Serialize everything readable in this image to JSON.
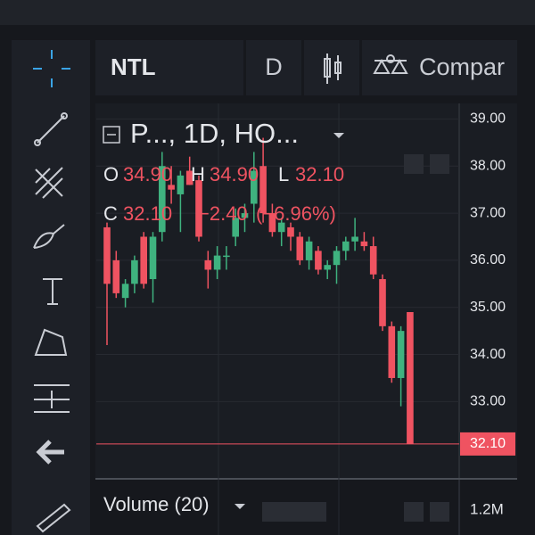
{
  "toolbar": {
    "symbol": "NTL",
    "interval": "D",
    "compare": "Compar"
  },
  "legend": {
    "title": "P..., 1D, HO...",
    "o_label": "O",
    "o_value": "34.90",
    "h_label": "H",
    "h_value": "34.90",
    "l_label": "L",
    "l_value": "32.10",
    "c_label": "C",
    "c_value": "32.10",
    "change": "−2.40",
    "change_pct": "(−6.96%)"
  },
  "volume": {
    "title": "Volume (20)",
    "axis_label": "1.2M"
  },
  "chart_data": {
    "type": "candlestick",
    "ylim": [
      31.36,
      39.33
    ],
    "yticks": [
      {
        "value": 39,
        "label": "39.00"
      },
      {
        "value": 38,
        "label": "38.00"
      },
      {
        "value": 37,
        "label": "37.00"
      },
      {
        "value": 36,
        "label": "36.00"
      },
      {
        "value": 35,
        "label": "35.00"
      },
      {
        "value": 34,
        "label": "34.00"
      },
      {
        "value": 33,
        "label": "33.00"
      }
    ],
    "grid": true,
    "up_color": "#3fb27f",
    "down_color": "#ef5361",
    "last_price": {
      "value": 32.1,
      "label": "32.10"
    },
    "open": [
      36.7,
      36.0,
      35.2,
      35.5,
      36.5,
      35.6,
      36.6,
      37.6,
      37.4,
      37.9,
      37.7,
      36.0,
      35.8,
      36.1,
      36.5,
      36.9,
      37.2,
      38.0,
      37.0,
      36.6,
      36.7,
      36.5,
      36.0,
      36.2,
      35.8,
      35.9,
      36.2,
      36.4,
      36.4,
      36.3,
      35.6,
      34.6,
      33.5,
      34.9
    ],
    "high": [
      36.8,
      36.2,
      35.6,
      36.1,
      36.6,
      36.6,
      38.3,
      38.0,
      37.9,
      38.2,
      37.8,
      36.2,
      36.3,
      36.3,
      37.1,
      37.2,
      38.3,
      38.6,
      37.2,
      36.9,
      36.8,
      36.6,
      36.5,
      36.3,
      36.0,
      36.3,
      36.5,
      36.9,
      36.6,
      36.5,
      35.7,
      34.7,
      34.6,
      34.9
    ],
    "low": [
      34.2,
      35.2,
      35.0,
      35.3,
      35.4,
      35.1,
      36.4,
      37.2,
      36.6,
      37.6,
      36.4,
      35.4,
      35.6,
      35.8,
      36.3,
      36.6,
      36.8,
      36.8,
      36.5,
      36.3,
      36.2,
      35.9,
      35.8,
      35.7,
      35.6,
      35.5,
      36.0,
      36.2,
      36.2,
      35.6,
      34.5,
      33.4,
      32.9,
      32.1
    ],
    "close": [
      35.5,
      35.3,
      35.5,
      36.0,
      35.5,
      36.5,
      38.0,
      37.5,
      37.8,
      37.6,
      36.5,
      35.8,
      36.1,
      36.1,
      36.9,
      37.0,
      37.9,
      37.0,
      36.6,
      36.8,
      36.5,
      36.0,
      36.4,
      35.8,
      35.9,
      36.2,
      36.4,
      36.5,
      36.3,
      35.7,
      34.6,
      33.5,
      34.5,
      32.1
    ]
  }
}
